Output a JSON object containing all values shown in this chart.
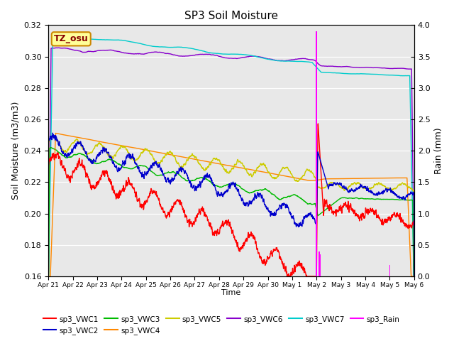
{
  "title": "SP3 Soil Moisture",
  "xlabel": "Time",
  "ylabel_left": "Soil Moisture (m3/m3)",
  "ylabel_right": "Rain (mm)",
  "ylim_left": [
    0.16,
    0.32
  ],
  "ylim_right": [
    0.0,
    4.0
  ],
  "annotation_text": "TZ_osu",
  "background_color": "#e8e8e8",
  "series": {
    "sp3_VWC1": {
      "color": "#ff0000",
      "lw": 1.0
    },
    "sp3_VWC2": {
      "color": "#0000cc",
      "lw": 1.0
    },
    "sp3_VWC3": {
      "color": "#00bb00",
      "lw": 1.0
    },
    "sp3_VWC4": {
      "color": "#ff8800",
      "lw": 1.0
    },
    "sp3_VWC5": {
      "color": "#cccc00",
      "lw": 1.0
    },
    "sp3_VWC6": {
      "color": "#8800cc",
      "lw": 1.0
    },
    "sp3_VWC7": {
      "color": "#00cccc",
      "lw": 1.0
    },
    "sp3_Rain": {
      "color": "#ff00ff",
      "lw": 1.0
    }
  },
  "tick_labels": [
    "Apr 21",
    "Apr 22",
    "Apr 23",
    "Apr 24",
    "Apr 25",
    "Apr 26",
    "Apr 27",
    "Apr 28",
    "Apr 29",
    "Apr 30",
    "May 1",
    "May 2",
    "May 3",
    "May 4",
    "May 5",
    "May 6"
  ],
  "num_points": 2000,
  "total_days": 15
}
